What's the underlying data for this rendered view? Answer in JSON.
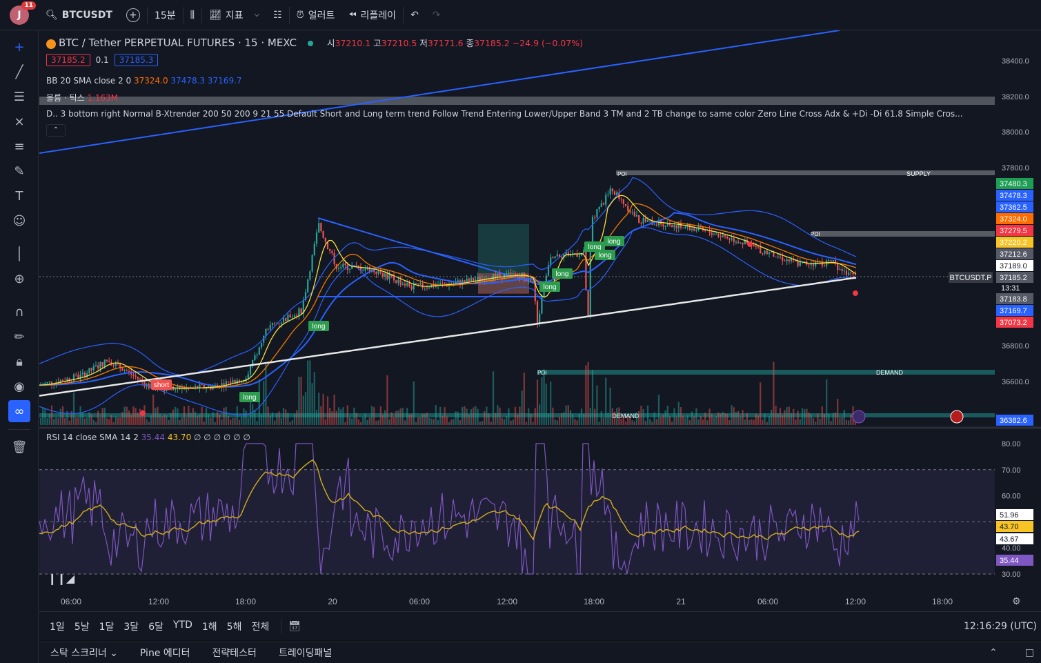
{
  "topbar": {
    "avatar_letter": "J",
    "avatar_badge": "11",
    "symbol": "BTCUSDT",
    "interval": "15분",
    "indicators_label": "지표",
    "alert_label": "얼러트",
    "replay_label": "리플레이"
  },
  "legend": {
    "title": "BTC / Tether PERPETUAL FUTURES · 15 · MEXC",
    "ohlc": {
      "o_label": "시",
      "o": "37210.1",
      "h_label": "고",
      "h": "37210.5",
      "l_label": "저",
      "l": "37171.6",
      "c_label": "종",
      "c": "37185.2",
      "change": "−24.9 (−0.07%)"
    },
    "bid": "37185.2",
    "spread": "0.1",
    "ask": "37185.3",
    "bb_label": "BB 20 SMA close 2 0",
    "bb_values": [
      "37324.0",
      "37478.3",
      "37169.7"
    ],
    "volume_label": "볼륨 · 틱스",
    "volume_value": "1.163M",
    "indicator_long": "D.. 3 bottom right Normal B-Xtrender 200 50 200 9 21 55 Default Short and Long term trend Follow Trend Entering Lower/Upper Band 3 TM and 2 TB change to same color Zero Line Cross Adx & +Di -Di 61.8 Simple Cros..."
  },
  "price_axis": {
    "ticks": [
      "38400.0",
      "38200.0",
      "38000.0",
      "37800.0",
      "36800.0",
      "36600.0"
    ],
    "labels": [
      {
        "text": "37480.3",
        "color": "#1e9e55"
      },
      {
        "text": "37478.3",
        "color": "#2962ff"
      },
      {
        "text": "37362.5",
        "color": "#2962ff"
      },
      {
        "text": "37324.0",
        "color": "#ff6d00"
      },
      {
        "text": "37279.5",
        "color": "#f23645"
      },
      {
        "text": "37220.2",
        "color": "#f7c325"
      },
      {
        "text": "37212.6",
        "color": "#555a66"
      },
      {
        "text": "37189.0",
        "color": "#ffffff"
      },
      {
        "text": "37185.2",
        "color": "#555a66"
      },
      {
        "text": "37183.8",
        "color": "#555a66"
      },
      {
        "text": "37169.7",
        "color": "#2962ff"
      },
      {
        "text": "37073.2",
        "color": "#f23645"
      }
    ],
    "countdown": "13:31",
    "symbol_tag": "BTCUSDT.P",
    "bottom_label": "36382.6"
  },
  "zones": {
    "supply": "SUPPLY",
    "demand": "DEMAND",
    "poi": "POI"
  },
  "signals": [
    "short",
    "long"
  ],
  "rsi": {
    "label": "RSI 14 close SMA 14 2",
    "value": "35.44",
    "sma": "43.70",
    "extra": "∅ ∅ ∅ ∅ ∅ ∅",
    "ticks": [
      "80.00",
      "70.00",
      "60.00",
      "40.00",
      "30.00"
    ],
    "labels": [
      {
        "text": "51.96",
        "color": "#ffffff"
      },
      {
        "text": "43.70",
        "color": "#f7c325"
      },
      {
        "text": "43.67",
        "color": "#ffffff"
      },
      {
        "text": "35.44",
        "color": "#7e57c2"
      }
    ]
  },
  "time_axis": [
    "06:00",
    "12:00",
    "18:00",
    "20",
    "06:00",
    "12:00",
    "18:00",
    "21",
    "06:00",
    "12:00",
    "18:00"
  ],
  "ranges": [
    "1일",
    "5날",
    "1달",
    "3달",
    "6달",
    "YTD",
    "1해",
    "5해",
    "전체"
  ],
  "clock": "12:16:29 (UTC)",
  "bottom_tabs": [
    "스탁 스크리너",
    "Pine 에디터",
    "전략테스터",
    "트레이딩패널"
  ],
  "colors": {
    "up": "#26a69a",
    "down": "#ef5350",
    "bb": "#2962ff",
    "rsi": "#7e57c2",
    "rsi_sma": "#f7c325"
  }
}
